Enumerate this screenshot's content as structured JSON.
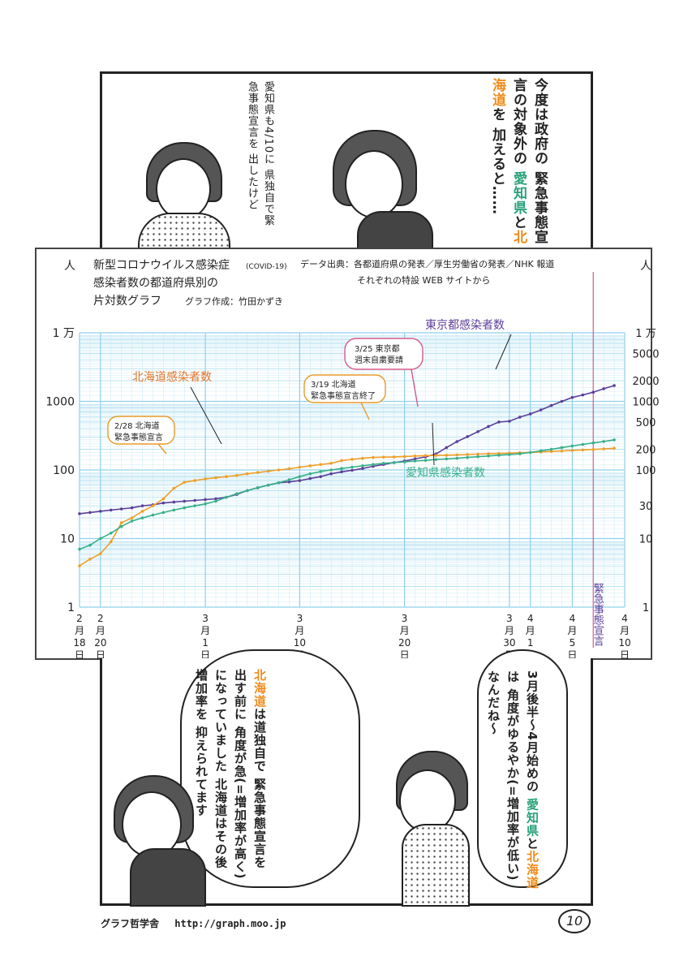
{
  "top_panel": {
    "narration": [
      "今度は政府の",
      "緊急事態宣言の対象外の",
      "愛知県と北海道を",
      "加えると……"
    ],
    "narration_parts": {
      "aichi": "愛知県",
      "to": "と",
      "hokkaido": "北海道",
      "wo": "を"
    },
    "handwritten": [
      "愛知県も4/10に",
      "県独自で緊急事態宣言を",
      "出したけど"
    ]
  },
  "chart_data": {
    "type": "line",
    "title_lines": [
      "新型コロナウイルス感染症",
      "感染者数の都道府県別の",
      "片対数グラフ"
    ],
    "title_suffix": "(COVID-19)",
    "author": "グラフ作成：竹田かずき",
    "source_line1": "データ出典：各都道府県の発表／厚生労働省の発表／NHK 報道",
    "source_line2": "それぞれの特設 WEB サイトから",
    "y_unit": "人",
    "y_scale": "log",
    "ylim": [
      1,
      10000
    ],
    "left_tick_labels": [
      {
        "value": 10000,
        "label": "1 万"
      },
      {
        "value": 1000,
        "label": "1000"
      },
      {
        "value": 100,
        "label": "100"
      },
      {
        "value": 10,
        "label": "10"
      },
      {
        "value": 1,
        "label": "1"
      }
    ],
    "right_tick_labels": [
      {
        "value": 10000,
        "label": "1 万"
      },
      {
        "value": 5000,
        "label": "5000"
      },
      {
        "value": 2000,
        "label": "2000"
      },
      {
        "value": 1000,
        "label": "1000"
      },
      {
        "value": 500,
        "label": "500"
      },
      {
        "value": 200,
        "label": "200"
      },
      {
        "value": 100,
        "label": "100"
      },
      {
        "value": 30,
        "label": "30"
      },
      {
        "value": 10,
        "label": "10"
      },
      {
        "value": 1,
        "label": "1"
      }
    ],
    "x_ticks": [
      {
        "date": "2020-02-18",
        "label": "2月18日"
      },
      {
        "date": "2020-02-20",
        "label": "2月20日"
      },
      {
        "date": "2020-03-01",
        "label": "3月1日"
      },
      {
        "date": "2020-03-10",
        "label": "3月10日"
      },
      {
        "date": "2020-03-20",
        "label": "3月20日"
      },
      {
        "date": "2020-03-30",
        "label": "3月30日"
      },
      {
        "date": "2020-04-01",
        "label": "4月1日"
      },
      {
        "date": "2020-04-05",
        "label": "4月5日"
      },
      {
        "date": "2020-04-10",
        "label": "4月10日"
      }
    ],
    "xlim": [
      "2020-02-18",
      "2020-04-10"
    ],
    "marker": {
      "date": "2020-04-07",
      "label": "緊急事態宣言",
      "color": "#d65a8c"
    },
    "series": [
      {
        "name": "東京都感染者数",
        "color": "#5b3f9a",
        "points": [
          [
            "2020-02-18",
            23
          ],
          [
            "2020-02-19",
            24
          ],
          [
            "2020-02-20",
            25
          ],
          [
            "2020-02-21",
            26
          ],
          [
            "2020-02-22",
            27
          ],
          [
            "2020-02-23",
            28
          ],
          [
            "2020-02-24",
            30
          ],
          [
            "2020-02-25",
            31
          ],
          [
            "2020-02-26",
            33
          ],
          [
            "2020-02-27",
            34
          ],
          [
            "2020-02-28",
            35
          ],
          [
            "2020-02-29",
            36
          ],
          [
            "2020-03-01",
            37
          ],
          [
            "2020-03-02",
            38
          ],
          [
            "2020-03-03",
            40
          ],
          [
            "2020-03-04",
            44
          ],
          [
            "2020-03-05",
            50
          ],
          [
            "2020-03-06",
            55
          ],
          [
            "2020-03-07",
            60
          ],
          [
            "2020-03-08",
            65
          ],
          [
            "2020-03-09",
            67
          ],
          [
            "2020-03-10",
            70
          ],
          [
            "2020-03-11",
            75
          ],
          [
            "2020-03-12",
            80
          ],
          [
            "2020-03-13",
            88
          ],
          [
            "2020-03-14",
            94
          ],
          [
            "2020-03-15",
            99
          ],
          [
            "2020-03-16",
            105
          ],
          [
            "2020-03-17",
            113
          ],
          [
            "2020-03-18",
            120
          ],
          [
            "2020-03-19",
            128
          ],
          [
            "2020-03-20",
            135
          ],
          [
            "2020-03-21",
            145
          ],
          [
            "2020-03-22",
            155
          ],
          [
            "2020-03-23",
            171
          ],
          [
            "2020-03-24",
            212
          ],
          [
            "2020-03-25",
            259
          ],
          [
            "2020-03-26",
            306
          ],
          [
            "2020-03-27",
            362
          ],
          [
            "2020-03-28",
            430
          ],
          [
            "2020-03-29",
            500
          ],
          [
            "2020-03-30",
            513
          ],
          [
            "2020-03-31",
            590
          ],
          [
            "2020-04-01",
            656
          ],
          [
            "2020-04-02",
            750
          ],
          [
            "2020-04-03",
            870
          ],
          [
            "2020-04-04",
            1000
          ],
          [
            "2020-04-05",
            1140
          ],
          [
            "2020-04-06",
            1240
          ],
          [
            "2020-04-07",
            1360
          ],
          [
            "2020-04-08",
            1530
          ],
          [
            "2020-04-09",
            1700
          ]
        ]
      },
      {
        "name": "北海道感染者数",
        "color": "#ef9f2a",
        "points": [
          [
            "2020-02-18",
            4
          ],
          [
            "2020-02-19",
            5
          ],
          [
            "2020-02-20",
            6
          ],
          [
            "2020-02-21",
            9
          ],
          [
            "2020-02-22",
            17
          ],
          [
            "2020-02-23",
            20
          ],
          [
            "2020-02-24",
            25
          ],
          [
            "2020-02-25",
            30
          ],
          [
            "2020-02-26",
            38
          ],
          [
            "2020-02-27",
            54
          ],
          [
            "2020-02-28",
            66
          ],
          [
            "2020-02-29",
            70
          ],
          [
            "2020-03-01",
            74
          ],
          [
            "2020-03-02",
            77
          ],
          [
            "2020-03-03",
            80
          ],
          [
            "2020-03-04",
            83
          ],
          [
            "2020-03-05",
            88
          ],
          [
            "2020-03-06",
            92
          ],
          [
            "2020-03-07",
            96
          ],
          [
            "2020-03-08",
            100
          ],
          [
            "2020-03-09",
            104
          ],
          [
            "2020-03-10",
            110
          ],
          [
            "2020-03-11",
            115
          ],
          [
            "2020-03-12",
            120
          ],
          [
            "2020-03-13",
            125
          ],
          [
            "2020-03-14",
            137
          ],
          [
            "2020-03-15",
            143
          ],
          [
            "2020-03-16",
            148
          ],
          [
            "2020-03-17",
            152
          ],
          [
            "2020-03-18",
            154
          ],
          [
            "2020-03-19",
            155
          ],
          [
            "2020-03-20",
            157
          ],
          [
            "2020-03-21",
            160
          ],
          [
            "2020-03-22",
            162
          ],
          [
            "2020-03-23",
            163
          ],
          [
            "2020-03-24",
            164
          ],
          [
            "2020-03-25",
            166
          ],
          [
            "2020-03-26",
            168
          ],
          [
            "2020-03-27",
            170
          ],
          [
            "2020-03-28",
            172
          ],
          [
            "2020-03-29",
            174
          ],
          [
            "2020-03-30",
            176
          ],
          [
            "2020-03-31",
            178
          ],
          [
            "2020-04-01",
            180
          ],
          [
            "2020-04-02",
            183
          ],
          [
            "2020-04-03",
            186
          ],
          [
            "2020-04-04",
            189
          ],
          [
            "2020-04-05",
            193
          ],
          [
            "2020-04-06",
            196
          ],
          [
            "2020-04-07",
            199
          ],
          [
            "2020-04-08",
            203
          ],
          [
            "2020-04-09",
            207
          ]
        ]
      },
      {
        "name": "愛知県感染者数",
        "color": "#38b08a",
        "points": [
          [
            "2020-02-18",
            7
          ],
          [
            "2020-02-19",
            8
          ],
          [
            "2020-02-20",
            10
          ],
          [
            "2020-02-21",
            12
          ],
          [
            "2020-02-22",
            15
          ],
          [
            "2020-02-23",
            18
          ],
          [
            "2020-02-24",
            20
          ],
          [
            "2020-02-25",
            22
          ],
          [
            "2020-02-26",
            24
          ],
          [
            "2020-02-27",
            26
          ],
          [
            "2020-02-28",
            28
          ],
          [
            "2020-02-29",
            30
          ],
          [
            "2020-03-01",
            32
          ],
          [
            "2020-03-02",
            35
          ],
          [
            "2020-03-03",
            40
          ],
          [
            "2020-03-04",
            45
          ],
          [
            "2020-03-05",
            50
          ],
          [
            "2020-03-06",
            55
          ],
          [
            "2020-03-07",
            60
          ],
          [
            "2020-03-08",
            65
          ],
          [
            "2020-03-09",
            72
          ],
          [
            "2020-03-10",
            80
          ],
          [
            "2020-03-11",
            88
          ],
          [
            "2020-03-12",
            95
          ],
          [
            "2020-03-13",
            100
          ],
          [
            "2020-03-14",
            105
          ],
          [
            "2020-03-15",
            110
          ],
          [
            "2020-03-16",
            115
          ],
          [
            "2020-03-17",
            120
          ],
          [
            "2020-03-18",
            125
          ],
          [
            "2020-03-19",
            128
          ],
          [
            "2020-03-20",
            131
          ],
          [
            "2020-03-21",
            135
          ],
          [
            "2020-03-22",
            138
          ],
          [
            "2020-03-23",
            142
          ],
          [
            "2020-03-24",
            145
          ],
          [
            "2020-03-25",
            148
          ],
          [
            "2020-03-26",
            152
          ],
          [
            "2020-03-27",
            156
          ],
          [
            "2020-03-28",
            160
          ],
          [
            "2020-03-29",
            164
          ],
          [
            "2020-03-30",
            168
          ],
          [
            "2020-03-31",
            172
          ],
          [
            "2020-04-01",
            180
          ],
          [
            "2020-04-02",
            190
          ],
          [
            "2020-04-03",
            200
          ],
          [
            "2020-04-04",
            212
          ],
          [
            "2020-04-05",
            224
          ],
          [
            "2020-04-06",
            236
          ],
          [
            "2020-04-07",
            248
          ],
          [
            "2020-04-08",
            260
          ],
          [
            "2020-04-09",
            275
          ]
        ]
      }
    ],
    "annotations": [
      {
        "label": "北海道感染者数",
        "color": "#e0762a"
      },
      {
        "label": "東京都感染者数",
        "color": "#5b3f9a"
      },
      {
        "label": "愛知県感染者数",
        "color": "#38b08a"
      },
      {
        "label_lines": [
          "2/28 北海道",
          "緊急事態宣言"
        ]
      },
      {
        "label_lines": [
          "3/19 北海道",
          "緊急事態宣言",
          "終了"
        ]
      },
      {
        "label_lines": [
          "3/25 東京都",
          "週末自粛要請"
        ]
      }
    ]
  },
  "bottom_panel": {
    "right_bubble": [
      "3月後半〜4月始めの",
      "愛知県と北海道は",
      "角度がゆるやか(=増加率が低い)",
      "なんだね〜"
    ],
    "right_bubble_parts": {
      "aichi": "愛知県",
      "to": "と",
      "hokkaido": "北海道",
      "wa": "は"
    },
    "left_bubble": [
      "北海道は道独自で",
      "緊急事態宣言を出す前に",
      "角度が急(=増加率が高く)",
      "になっていました",
      "北海道はその後 増加率を",
      "抑えられてます"
    ],
    "left_bubble_parts": {
      "hokkaido": "北海道",
      "rest": "は道独自で"
    }
  },
  "footer": {
    "publisher": "グラフ哲学舎",
    "url": "http://graph.moo.jp",
    "page_number": "10"
  }
}
